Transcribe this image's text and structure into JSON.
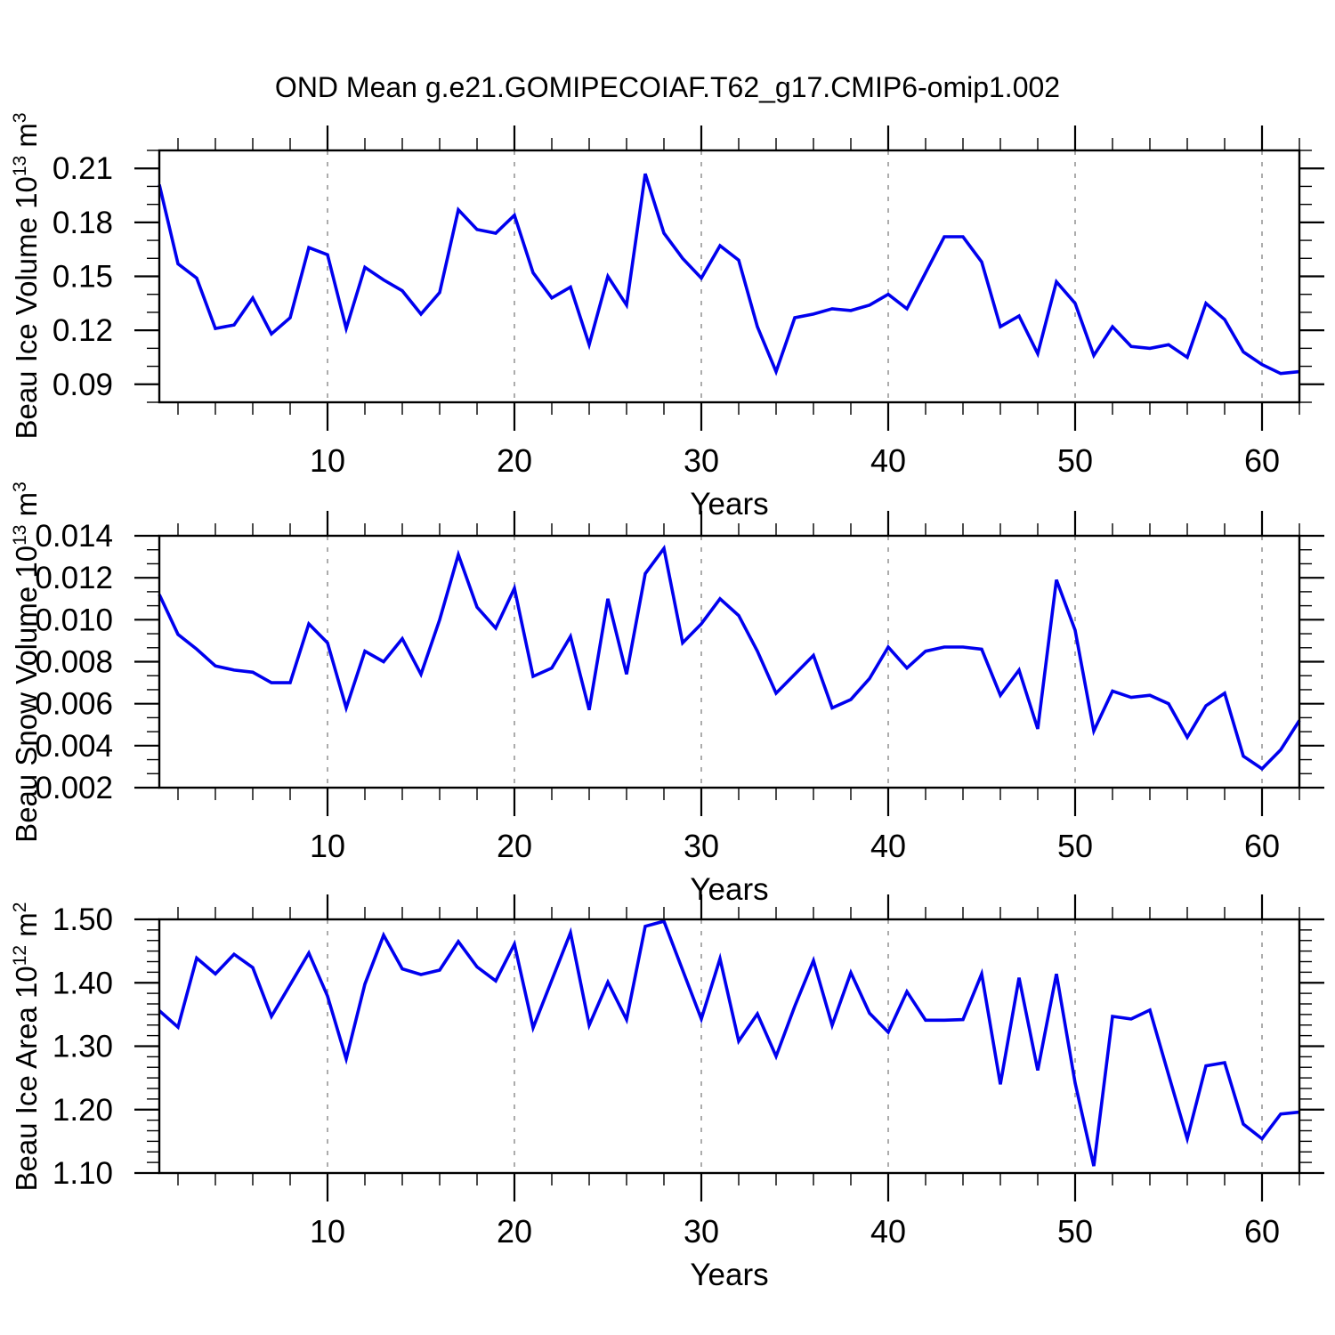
{
  "title": "OND Mean g.e21.GOMIPECOIAF.T62_g17.CMIP6-omip1.002",
  "colors": {
    "line": "#0000EE",
    "grid": "#808080",
    "axis": "#000000"
  },
  "years": [
    1,
    2,
    3,
    4,
    5,
    6,
    7,
    8,
    9,
    10,
    11,
    12,
    13,
    14,
    15,
    16,
    17,
    18,
    19,
    20,
    21,
    22,
    23,
    24,
    25,
    26,
    27,
    28,
    29,
    30,
    31,
    32,
    33,
    34,
    35,
    36,
    37,
    38,
    39,
    40,
    41,
    42,
    43,
    44,
    45,
    46,
    47,
    48,
    49,
    50,
    51,
    52,
    53,
    54,
    55,
    56,
    57,
    58,
    59,
    60,
    61,
    62
  ],
  "chart_data": [
    {
      "id": "ice-volume",
      "type": "line",
      "series_name": "Beau Ice Volume",
      "xlabel": "Years",
      "ylabel": "Beau Ice Volume 10^13 m^3",
      "ylabel_parts": {
        "pre": "Beau Ice Volume 10",
        "exp": "13",
        "unit": " m",
        "unit_exp": "3"
      },
      "x_range": [
        1,
        62
      ],
      "ylim": [
        0.08,
        0.22
      ],
      "yticks": [
        0.21,
        0.18,
        0.15,
        0.12,
        0.09
      ],
      "ytick_labels": [
        "0.21",
        "0.18",
        "0.15",
        "0.12",
        "0.09"
      ],
      "yminor_step": 0.01,
      "xticks": [
        10,
        20,
        30,
        40,
        50,
        60
      ],
      "xtick_labels": [
        "10",
        "20",
        "30",
        "40",
        "50",
        "60"
      ],
      "xminor_step": 2,
      "grid": "vertical-dashed-at-xticks",
      "line_color": "#0000EE",
      "values": [
        0.201,
        0.157,
        0.149,
        0.121,
        0.123,
        0.138,
        0.118,
        0.127,
        0.166,
        0.162,
        0.121,
        0.155,
        0.148,
        0.142,
        0.129,
        0.141,
        0.187,
        0.176,
        0.174,
        0.184,
        0.152,
        0.138,
        0.144,
        0.112,
        0.15,
        0.134,
        0.207,
        0.174,
        0.16,
        0.149,
        0.167,
        0.159,
        0.122,
        0.097,
        0.127,
        0.129,
        0.132,
        0.131,
        0.134,
        0.14,
        0.132,
        0.152,
        0.172,
        0.172,
        0.158,
        0.122,
        0.128,
        0.107,
        0.147,
        0.135,
        0.106,
        0.122,
        0.111,
        0.11,
        0.112,
        0.105,
        0.135,
        0.126,
        0.108,
        0.101,
        0.096,
        0.097
      ]
    },
    {
      "id": "snow-volume",
      "type": "line",
      "series_name": "Beau Snow Volume",
      "xlabel": "Years",
      "ylabel": "Beau Snow Volume 10^13 m^3",
      "ylabel_parts": {
        "pre": "Beau Snow Volume 10",
        "exp": "13",
        "unit": " m",
        "unit_exp": "3"
      },
      "x_range": [
        1,
        62
      ],
      "ylim": [
        0.002,
        0.014
      ],
      "yticks": [
        0.014,
        0.012,
        0.01,
        0.008,
        0.006,
        0.004,
        0.002
      ],
      "ytick_labels": [
        "0.014",
        "0.012",
        "0.010",
        "0.008",
        "0.006",
        "0.004",
        "0.002"
      ],
      "yminor_step": 0.000666667,
      "xticks": [
        10,
        20,
        30,
        40,
        50,
        60
      ],
      "xtick_labels": [
        "10",
        "20",
        "30",
        "40",
        "50",
        "60"
      ],
      "xminor_step": 2,
      "grid": "vertical-dashed-at-xticks",
      "line_color": "#0000EE",
      "values": [
        0.0112,
        0.0093,
        0.0086,
        0.0078,
        0.0076,
        0.0075,
        0.007,
        0.007,
        0.0098,
        0.0089,
        0.0058,
        0.0085,
        0.008,
        0.0091,
        0.0074,
        0.01,
        0.0131,
        0.0106,
        0.0096,
        0.0115,
        0.0073,
        0.0077,
        0.0092,
        0.0057,
        0.011,
        0.0074,
        0.0122,
        0.0134,
        0.0089,
        0.0098,
        0.011,
        0.0102,
        0.0085,
        0.0065,
        0.0074,
        0.0083,
        0.0058,
        0.0062,
        0.0072,
        0.0087,
        0.0077,
        0.0085,
        0.0087,
        0.0087,
        0.0086,
        0.0064,
        0.0076,
        0.0048,
        0.0119,
        0.0095,
        0.0047,
        0.0066,
        0.0063,
        0.0064,
        0.006,
        0.0044,
        0.0059,
        0.0065,
        0.0035,
        0.0029,
        0.0038,
        0.0052
      ]
    },
    {
      "id": "ice-area",
      "type": "line",
      "series_name": "Beau Ice Area",
      "xlabel": "Years",
      "ylabel": "Beau Ice Area 10^12 m^2",
      "ylabel_parts": {
        "pre": "Beau Ice Area 10",
        "exp": "12",
        "unit": " m",
        "unit_exp": "2"
      },
      "x_range": [
        1,
        62
      ],
      "ylim": [
        1.1,
        1.5
      ],
      "yticks": [
        1.5,
        1.4,
        1.3,
        1.2,
        1.1
      ],
      "ytick_labels": [
        "1.50",
        "1.40",
        "1.30",
        "1.20",
        "1.10"
      ],
      "yminor_step": 0.0166667,
      "xticks": [
        10,
        20,
        30,
        40,
        50,
        60
      ],
      "xtick_labels": [
        "10",
        "20",
        "30",
        "40",
        "50",
        "60"
      ],
      "xminor_step": 2,
      "grid": "vertical-dashed-at-xticks",
      "line_color": "#0000EE",
      "values": [
        1.356,
        1.33,
        1.439,
        1.414,
        1.445,
        1.424,
        1.347,
        1.397,
        1.447,
        1.379,
        1.28,
        1.398,
        1.475,
        1.422,
        1.413,
        1.42,
        1.465,
        1.425,
        1.403,
        1.461,
        1.329,
        1.404,
        1.479,
        1.333,
        1.401,
        1.342,
        1.489,
        1.497,
        1.42,
        1.343,
        1.438,
        1.308,
        1.351,
        1.284,
        1.363,
        1.435,
        1.333,
        1.416,
        1.352,
        1.322,
        1.386,
        1.341,
        1.341,
        1.342,
        1.414,
        1.24,
        1.408,
        1.262,
        1.414,
        1.242,
        1.111,
        1.347,
        1.343,
        1.357,
        1.255,
        1.154,
        1.269,
        1.274,
        1.177,
        1.154,
        1.193,
        1.196
      ]
    }
  ]
}
